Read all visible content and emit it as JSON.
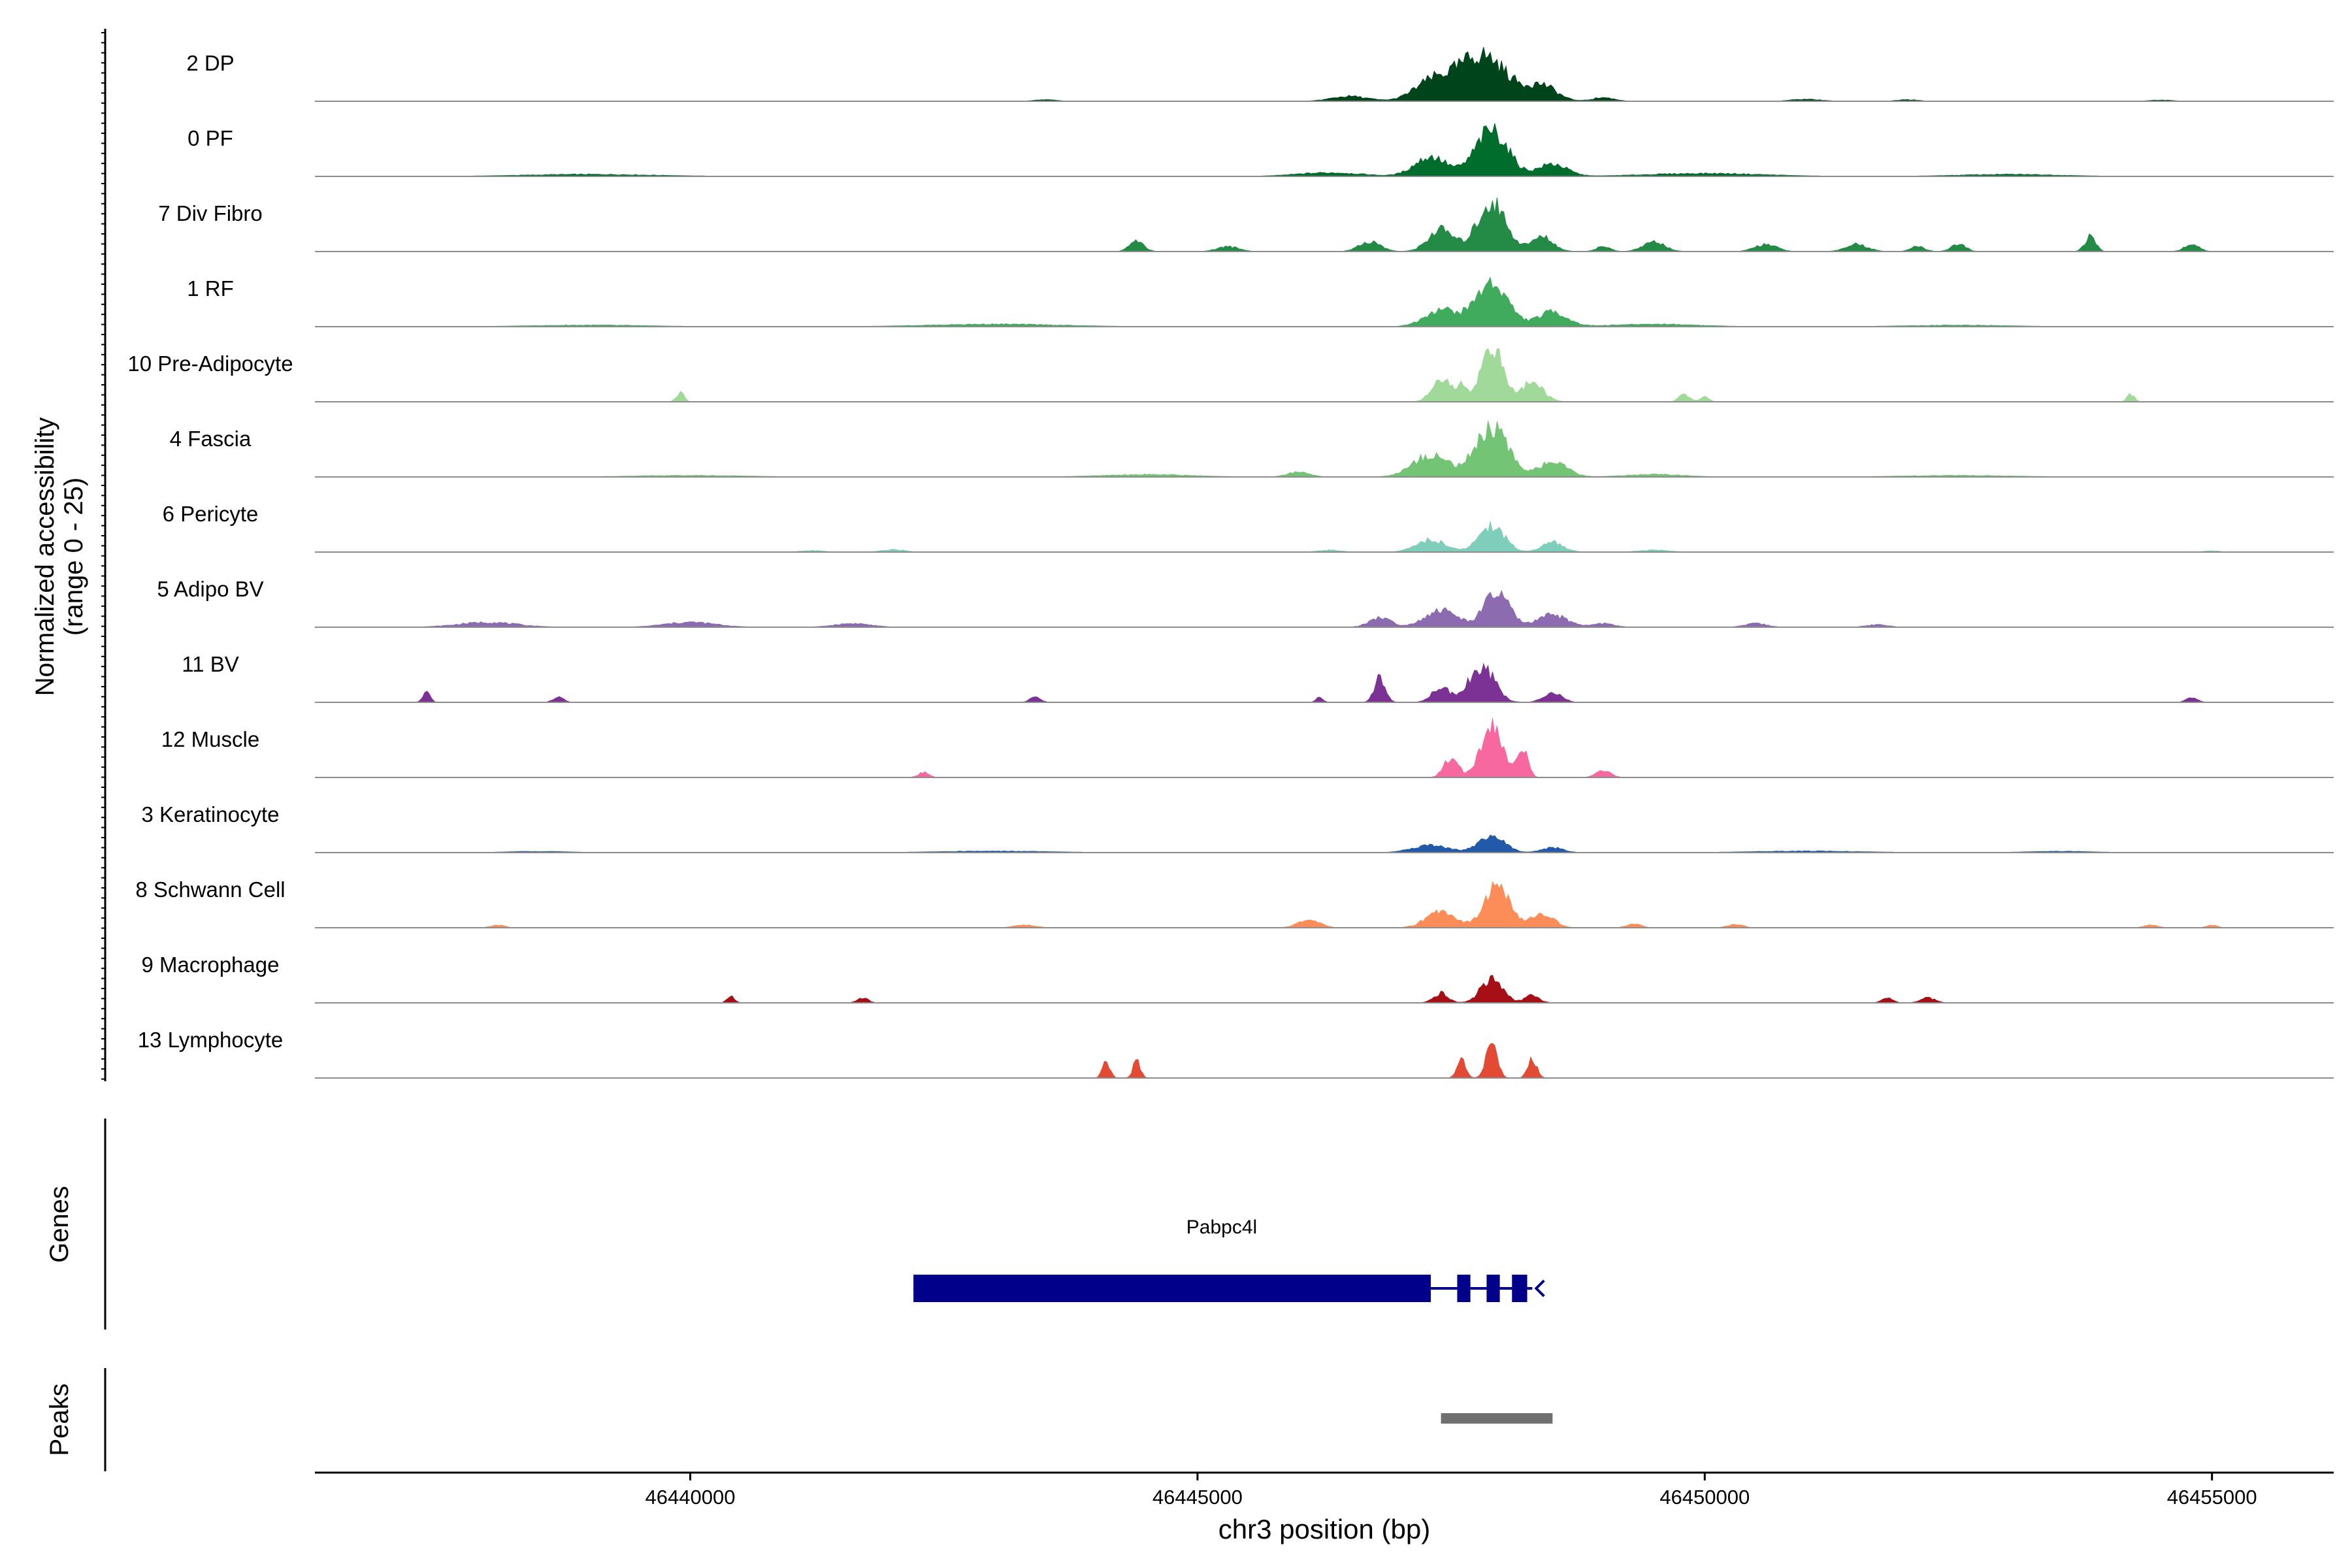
{
  "chart_data": {
    "type": "area",
    "title": "",
    "ylabel_lines": [
      "Normalized accessibility",
      "(range 0 - 25)"
    ],
    "ylim": [
      0,
      25
    ],
    "xlabel": "chr3 position (bp)",
    "x_range": [
      46436300,
      46456200
    ],
    "x_ticks": [
      46440000,
      46445000,
      46450000,
      46455000
    ],
    "x_tick_labels": [
      "46440000",
      "46445000",
      "46450000",
      "46455000"
    ],
    "tracks": [
      {
        "name": "2 DP",
        "color": "#00441b",
        "peaks": [
          [
            46447800,
            19,
            700
          ],
          [
            46447300,
            7,
            500
          ],
          [
            46448400,
            6,
            400
          ],
          [
            46446500,
            2,
            500
          ],
          [
            46449000,
            1.5,
            300
          ],
          [
            46443500,
            0.6,
            300
          ],
          [
            46451000,
            0.8,
            400
          ],
          [
            46452000,
            0.6,
            300
          ],
          [
            46454500,
            0.5,
            300
          ]
        ]
      },
      {
        "name": "0 PF",
        "color": "#006d2c",
        "peaks": [
          [
            46447900,
            19,
            450
          ],
          [
            46447300,
            8,
            450
          ],
          [
            46448500,
            5,
            400
          ],
          [
            46446300,
            1.5,
            900
          ],
          [
            46450000,
            1.2,
            1600
          ],
          [
            46439000,
            0.8,
            1800
          ],
          [
            46453000,
            0.8,
            1400
          ]
        ]
      },
      {
        "name": "7 Div Fibro",
        "color": "#238b45",
        "peaks": [
          [
            46447900,
            20,
            400
          ],
          [
            46447400,
            9,
            350
          ],
          [
            46448400,
            6,
            300
          ],
          [
            46444400,
            4,
            200
          ],
          [
            46446700,
            4,
            300
          ],
          [
            46449500,
            4,
            300
          ],
          [
            46450600,
            3,
            300
          ],
          [
            46453800,
            6,
            150
          ],
          [
            46451500,
            3,
            300
          ],
          [
            46452500,
            3,
            200
          ],
          [
            46454800,
            3,
            200
          ],
          [
            46445300,
            2,
            300
          ],
          [
            46449000,
            2,
            200
          ],
          [
            46452100,
            2,
            200
          ]
        ]
      },
      {
        "name": "1 RF",
        "color": "#41ab5d",
        "peaks": [
          [
            46447900,
            18,
            450
          ],
          [
            46447400,
            7,
            450
          ],
          [
            46448500,
            6,
            400
          ],
          [
            46443000,
            1,
            1800
          ],
          [
            46449500,
            1,
            1200
          ],
          [
            46439000,
            0.6,
            1600
          ],
          [
            46452500,
            0.6,
            1400
          ]
        ]
      },
      {
        "name": "10 Pre-Adipocyte",
        "color": "#a1d99b",
        "peaks": [
          [
            46447900,
            23,
            300
          ],
          [
            46447400,
            10,
            250
          ],
          [
            46448300,
            8,
            300
          ],
          [
            46447600,
            6,
            150
          ],
          [
            46439900,
            4,
            100
          ],
          [
            46449800,
            3,
            150
          ],
          [
            46450000,
            2,
            120
          ],
          [
            46454200,
            3,
            100
          ]
        ]
      },
      {
        "name": "4 Fascia",
        "color": "#74c476",
        "peaks": [
          [
            46447900,
            20,
            450
          ],
          [
            46447300,
            9,
            500
          ],
          [
            46448500,
            6,
            400
          ],
          [
            46444500,
            1,
            1200
          ],
          [
            46446000,
            2,
            300
          ],
          [
            46449500,
            1,
            800
          ],
          [
            46440000,
            0.6,
            1500
          ],
          [
            46452500,
            0.6,
            1500
          ]
        ]
      },
      {
        "name": "6 Pericyte",
        "color": "#7fcdbb",
        "peaks": [
          [
            46447900,
            11,
            350
          ],
          [
            46447300,
            5,
            400
          ],
          [
            46448500,
            4,
            300
          ],
          [
            46442000,
            1,
            300
          ],
          [
            46446300,
            0.8,
            300
          ],
          [
            46449500,
            0.8,
            400
          ],
          [
            46441200,
            0.6,
            300
          ],
          [
            46455000,
            0.5,
            200
          ]
        ]
      },
      {
        "name": "5 Adipo BV",
        "color": "#8c6bb1",
        "peaks": [
          [
            46447950,
            14,
            350
          ],
          [
            46447400,
            7,
            450
          ],
          [
            46448500,
            5,
            400
          ],
          [
            46446800,
            4,
            300
          ],
          [
            46438000,
            2,
            800
          ],
          [
            46440000,
            2,
            700
          ],
          [
            46441600,
            1.5,
            500
          ],
          [
            46449000,
            1.5,
            300
          ],
          [
            46450500,
            1.5,
            300
          ],
          [
            46451700,
            1,
            300
          ]
        ]
      },
      {
        "name": "11 BV",
        "color": "#7b3294",
        "peaks": [
          [
            46447800,
            15,
            350
          ],
          [
            46446800,
            10,
            150
          ],
          [
            46447400,
            6,
            250
          ],
          [
            46448500,
            4,
            250
          ],
          [
            46437400,
            4,
            100
          ],
          [
            46438700,
            2,
            150
          ],
          [
            46443400,
            2,
            150
          ],
          [
            46446200,
            2,
            100
          ],
          [
            46454800,
            2,
            150
          ]
        ]
      },
      {
        "name": "12 Muscle",
        "color": "#f768a1",
        "peaks": [
          [
            46447900,
            21,
            300
          ],
          [
            46447500,
            8,
            200
          ],
          [
            46448200,
            12,
            150
          ],
          [
            46442300,
            2,
            150
          ],
          [
            46449000,
            3,
            200
          ]
        ]
      },
      {
        "name": "3 Keratinocyte",
        "color": "#2259a8",
        "peaks": [
          [
            46447900,
            7,
            350
          ],
          [
            46447300,
            3,
            500
          ],
          [
            46448500,
            2,
            300
          ],
          [
            46443000,
            0.6,
            1500
          ],
          [
            46451000,
            0.6,
            1500
          ],
          [
            46438500,
            0.5,
            800
          ],
          [
            46453500,
            0.5,
            900
          ]
        ]
      },
      {
        "name": "8 Schwann Cell",
        "color": "#fc8d59",
        "peaks": [
          [
            46447950,
            17,
            350
          ],
          [
            46447400,
            7,
            400
          ],
          [
            46448400,
            6,
            300
          ],
          [
            46446100,
            3,
            300
          ],
          [
            46443300,
            1,
            300
          ],
          [
            46449300,
            1.5,
            200
          ],
          [
            46450300,
            1.5,
            200
          ],
          [
            46438100,
            1,
            200
          ],
          [
            46454400,
            1,
            200
          ],
          [
            46455000,
            1,
            150
          ]
        ]
      },
      {
        "name": "9 Macrophage",
        "color": "#a50f15",
        "peaks": [
          [
            46447900,
            10,
            300
          ],
          [
            46447400,
            4,
            200
          ],
          [
            46448300,
            3,
            200
          ],
          [
            46440400,
            3,
            100
          ],
          [
            46441700,
            2,
            150
          ],
          [
            46451800,
            2,
            150
          ],
          [
            46452200,
            2,
            200
          ]
        ]
      },
      {
        "name": "13 Lymphocyte",
        "color": "#e34a33",
        "peaks": [
          [
            46447900,
            16,
            150
          ],
          [
            46447600,
            8,
            120
          ],
          [
            46448300,
            8,
            120
          ],
          [
            46444100,
            7,
            100
          ],
          [
            46444400,
            7,
            100
          ]
        ]
      }
    ],
    "genes": {
      "title": "Genes",
      "name": "Pabpc4l",
      "color": "#00008b",
      "start": 46442200,
      "end": 46448300,
      "exons": [
        [
          46442200,
          46447300
        ],
        [
          46447560,
          46447690
        ],
        [
          46447850,
          46447980
        ],
        [
          46448100,
          46448250
        ]
      ],
      "strand": "-"
    },
    "peaks_track": {
      "title": "Peaks",
      "color": "#707070",
      "regions": [
        [
          46447400,
          46448500
        ]
      ]
    }
  }
}
